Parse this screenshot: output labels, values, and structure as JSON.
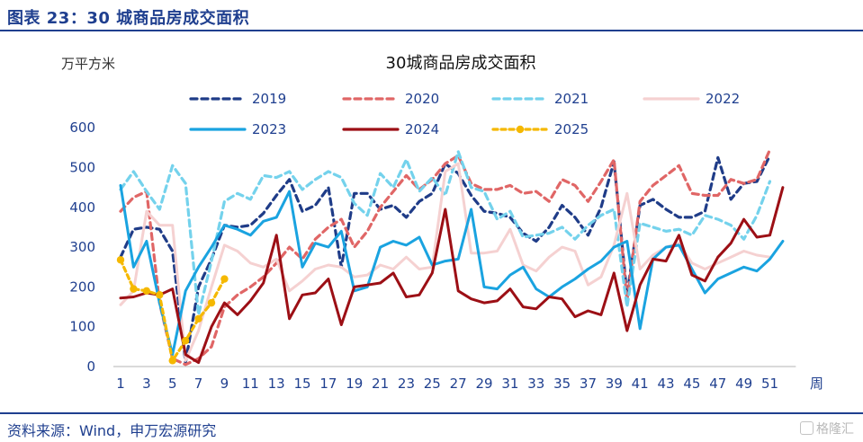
{
  "figure_title": "图表 23：30 城商品房成交面积",
  "source": "资料来源：Wind，申万宏源研究",
  "watermark": "格隆汇",
  "colors": {
    "2019": "#1f3c88",
    "2020": "#e06666",
    "2021": "#74d2ec",
    "2022": "#f5d1d1",
    "2023": "#1aa3e0",
    "2024": "#9c0f15",
    "2025": "#f5b800"
  },
  "chart_data": {
    "type": "line",
    "title": "30城商品房成交面积",
    "ylabel": "万平方米",
    "xlabel": "周",
    "ylim": [
      0,
      600
    ],
    "yticks": [
      0,
      100,
      200,
      300,
      400,
      500,
      600
    ],
    "xlim": [
      1,
      53
    ],
    "xticks": [
      1,
      3,
      5,
      7,
      9,
      11,
      13,
      15,
      17,
      19,
      21,
      23,
      25,
      27,
      29,
      31,
      33,
      35,
      37,
      39,
      41,
      43,
      45,
      47,
      49,
      51
    ],
    "grid": false,
    "legend_position": "top",
    "series": [
      {
        "name": "2019",
        "style": "dashed",
        "values": [
          275,
          345,
          350,
          345,
          290,
          10,
          200,
          270,
          355,
          350,
          355,
          385,
          430,
          470,
          390,
          405,
          450,
          250,
          435,
          435,
          395,
          405,
          375,
          415,
          435,
          510,
          485,
          430,
          390,
          385,
          375,
          335,
          315,
          350,
          405,
          375,
          330,
          400,
          515,
          180,
          405,
          420,
          395,
          375,
          375,
          390,
          525,
          420,
          460,
          465,
          530
        ]
      },
      {
        "name": "2020",
        "style": "dashed",
        "values": [
          390,
          425,
          440,
          160,
          20,
          5,
          20,
          50,
          150,
          180,
          200,
          225,
          260,
          300,
          270,
          320,
          350,
          370,
          300,
          340,
          400,
          440,
          480,
          445,
          470,
          510,
          530,
          460,
          445,
          445,
          455,
          435,
          440,
          415,
          470,
          455,
          415,
          465,
          520,
          165,
          415,
          455,
          480,
          505,
          435,
          430,
          430,
          470,
          460,
          470,
          545
        ]
      },
      {
        "name": "2021",
        "style": "dashed",
        "values": [
          445,
          490,
          440,
          395,
          505,
          460,
          130,
          265,
          415,
          435,
          420,
          480,
          475,
          490,
          445,
          470,
          490,
          475,
          410,
          380,
          485,
          450,
          520,
          440,
          475,
          430,
          540,
          450,
          440,
          370,
          390,
          325,
          330,
          335,
          350,
          320,
          355,
          380,
          395,
          150,
          360,
          350,
          340,
          345,
          330,
          380,
          370,
          355,
          320,
          380,
          465
        ]
      },
      {
        "name": "2022",
        "style": "solid",
        "values": [
          155,
          190,
          390,
          355,
          355,
          15,
          90,
          200,
          305,
          290,
          260,
          250,
          270,
          190,
          215,
          245,
          255,
          250,
          225,
          230,
          255,
          245,
          275,
          245,
          250,
          490,
          510,
          285,
          285,
          290,
          345,
          255,
          240,
          275,
          300,
          290,
          205,
          225,
          305,
          435,
          245,
          280,
          300,
          310,
          260,
          245,
          260,
          275,
          290,
          280,
          275
        ]
      },
      {
        "name": "2023",
        "style": "solid",
        "values": [
          455,
          250,
          315,
          160,
          30,
          190,
          250,
          300,
          355,
          345,
          330,
          365,
          375,
          440,
          250,
          310,
          300,
          340,
          190,
          200,
          300,
          315,
          305,
          325,
          255,
          265,
          270,
          395,
          200,
          195,
          230,
          250,
          195,
          175,
          200,
          220,
          245,
          265,
          300,
          315,
          95,
          270,
          300,
          305,
          245,
          185,
          220,
          235,
          250,
          240,
          270,
          315
        ]
      },
      {
        "name": "2024",
        "style": "solid",
        "values": [
          172,
          175,
          185,
          180,
          195,
          30,
          10,
          100,
          160,
          130,
          165,
          210,
          330,
          120,
          180,
          185,
          220,
          105,
          200,
          205,
          210,
          235,
          175,
          180,
          235,
          395,
          190,
          170,
          160,
          165,
          195,
          150,
          145,
          175,
          170,
          125,
          140,
          130,
          235,
          90,
          205,
          270,
          265,
          330,
          230,
          215,
          275,
          310,
          370,
          325,
          330,
          450
        ]
      },
      {
        "name": "2025",
        "style": "dotted",
        "values": [
          268,
          195,
          190,
          180,
          15,
          65,
          120,
          160,
          220
        ]
      }
    ]
  }
}
